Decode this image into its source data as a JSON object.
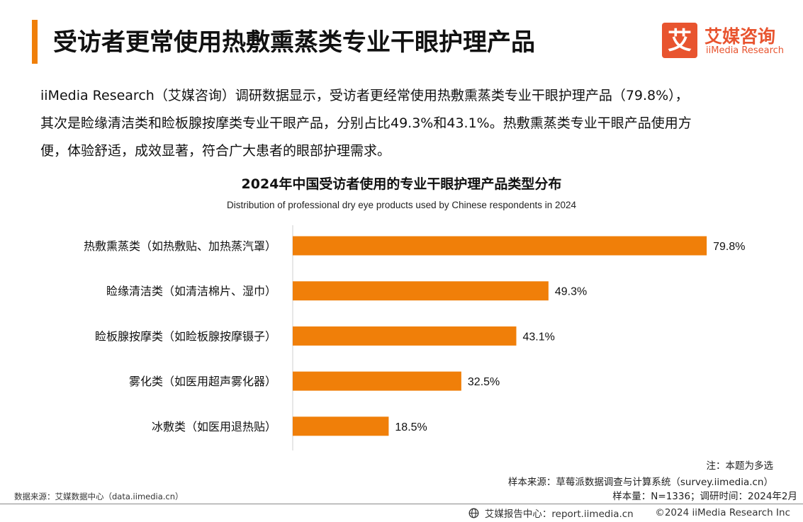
{
  "header": {
    "title": "受访者更常使用热敷熏蒸类专业干眼护理产品",
    "logo_cn": "艾媒咨询",
    "logo_en": "iiMedia Research",
    "logo_mark": "艾"
  },
  "intro": {
    "line1": "iiMedia Research（艾媒咨询）调研数据显示，受访者更经常使用热敷熏蒸类专业干眼护理产品（79.8%），",
    "line2": "其次是睑缘清洁类和睑板腺按摩类专业干眼产品，分别占比49.3%和43.1%。热敷熏蒸类专业干眼产品使用方",
    "line3": "便，体验舒适，成效显著，符合广大患者的眼部护理需求。"
  },
  "chart_data": {
    "type": "bar",
    "orientation": "horizontal",
    "title": "2024年中国受访者使用的专业干眼护理产品类型分布",
    "subtitle": "Distribution of professional dry eye products used by Chinese respondents in 2024",
    "categories": [
      "热敷熏蒸类（如热敷贴、加热蒸汽罩）",
      "睑缘清洁类（如清洁棉片、湿巾）",
      "睑板腺按摩类（如睑板腺按摩镊子）",
      "雾化类（如医用超声雾化器）",
      "冰敷类（如医用退热贴）"
    ],
    "values": [
      79.8,
      49.3,
      43.1,
      32.5,
      18.5
    ],
    "value_labels": [
      "79.8%",
      "49.3%",
      "43.1%",
      "32.5%",
      "18.5%"
    ],
    "unit": "%",
    "xlim": [
      0,
      100
    ],
    "grid": false,
    "legend": "none",
    "bar_color": "#F07F09"
  },
  "footer": {
    "note": "注：本题为多选",
    "sample_source": "样本来源：草莓派数据调查与计算系统（survey.iimedia.cn）",
    "sample_size": "样本量：N=1336；调研时间：2024年2月",
    "data_source": "数据来源：艾媒数据中心（data.iimedia.cn）",
    "report_center": "艾媒报告中心：report.iimedia.cn",
    "copyright": "©2024  iiMedia Research  Inc"
  },
  "colors": {
    "accent": "#F07F09",
    "logo_red": "#E8542F",
    "text": "#111111"
  }
}
